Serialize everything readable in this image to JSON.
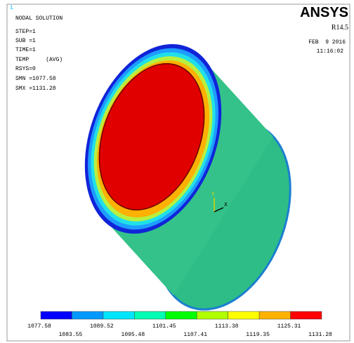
{
  "viewport": {
    "window_number": "1"
  },
  "info": {
    "lines": [
      "NODAL SOLUTION",
      "STEP=1",
      "SUB =1",
      "TIME=1",
      "TEMP     (AVG)",
      "RSYS=0",
      "SMN =1077.58",
      "SMX =1131.28"
    ]
  },
  "brand": {
    "name": "ANSYS",
    "version": "R14.5",
    "date": "FEB  9 2016",
    "time": "11:16:02"
  },
  "triad": {
    "y_label": "Y",
    "x_label": "X"
  },
  "legend": {
    "colors": [
      "#0000ff",
      "#0099ff",
      "#00e5ff",
      "#00ffb2",
      "#00ff00",
      "#b2ff00",
      "#ffff00",
      "#ffb200",
      "#ff0000"
    ],
    "labels": [
      "1077.58",
      "1083.55",
      "1089.52",
      "1095.48",
      "1101.45",
      "1107.41",
      "1113.38",
      "1119.35",
      "1125.31",
      "1131.28"
    ]
  }
}
